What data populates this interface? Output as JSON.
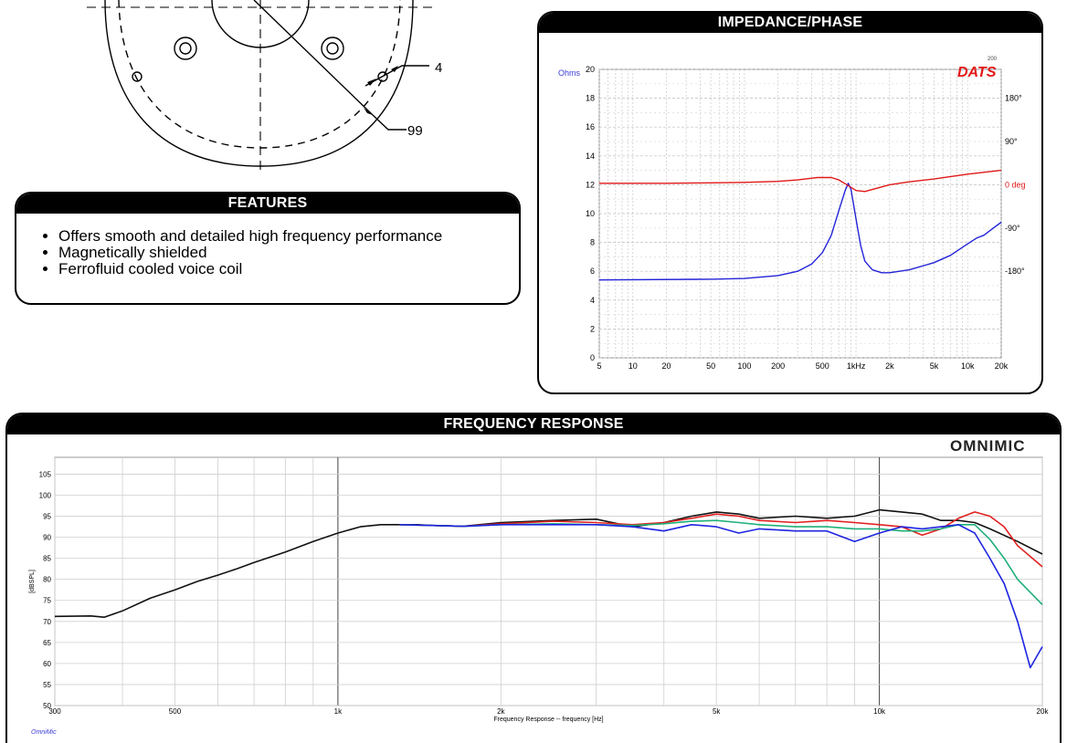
{
  "drawing": {
    "dimension_labels": [
      "4",
      "99"
    ]
  },
  "features": {
    "title": "FEATURES",
    "items": [
      "Offers smooth and detailed high frequency performance",
      "Magnetically shielded",
      "Ferrofluid cooled voice coil"
    ]
  },
  "impedance": {
    "title": "IMPEDANCE/PHASE",
    "brand": "DATS",
    "brand_superscript": "200",
    "y_unit_label": "Ohms",
    "phase_unit_label": "deg"
  },
  "frequency_response": {
    "title": "FREQUENCY RESPONSE",
    "brand": "OMNIMIC",
    "footer_brand": "OmniMic"
  },
  "colors": {
    "impedance": "#2323d8",
    "phase": "#e01818",
    "fr_black": "#111111",
    "fr_red": "#e22020",
    "fr_green": "#1fb07a",
    "fr_blue": "#1d24e0"
  },
  "chart_data": [
    {
      "type": "line",
      "title": "IMPEDANCE/PHASE",
      "xscale": "log",
      "xlim": [
        5,
        20000
      ],
      "x_ticks": [
        5,
        10,
        20,
        50,
        100,
        200,
        500,
        1000,
        2000,
        5000,
        10000,
        20000
      ],
      "x_tick_labels": [
        "5",
        "10",
        "20",
        "50",
        "100",
        "200",
        "500",
        "1kHz",
        "2k",
        "5k",
        "10k",
        "20k"
      ],
      "ylabel": "Ohms",
      "ylim": [
        0,
        20
      ],
      "y_ticks": [
        0,
        2,
        4,
        6,
        8,
        10,
        12,
        14,
        16,
        18,
        20
      ],
      "y2label": "deg",
      "y2lim": [
        -360,
        240
      ],
      "y2_tick_values": [
        180,
        90,
        0,
        -90,
        -180
      ],
      "y2_tick_labels": [
        "180°",
        "90°",
        "0 deg",
        "-90°",
        "-180°"
      ],
      "series": [
        {
          "name": "Impedance",
          "axis": "left",
          "color": "#2323d8",
          "points": [
            [
              5,
              5.4
            ],
            [
              50,
              5.45
            ],
            [
              100,
              5.5
            ],
            [
              200,
              5.7
            ],
            [
              300,
              6.0
            ],
            [
              400,
              6.5
            ],
            [
              500,
              7.3
            ],
            [
              600,
              8.5
            ],
            [
              700,
              10.2
            ],
            [
              800,
              11.6
            ],
            [
              850,
              12.1
            ],
            [
              900,
              11.7
            ],
            [
              1000,
              9.6
            ],
            [
              1100,
              7.8
            ],
            [
              1200,
              6.7
            ],
            [
              1400,
              6.1
            ],
            [
              1700,
              5.9
            ],
            [
              2000,
              5.9
            ],
            [
              3000,
              6.1
            ],
            [
              5000,
              6.6
            ],
            [
              7000,
              7.1
            ],
            [
              10000,
              7.9
            ],
            [
              12000,
              8.3
            ],
            [
              14000,
              8.5
            ],
            [
              17000,
              9.0
            ],
            [
              20000,
              9.4
            ]
          ]
        },
        {
          "name": "Phase",
          "axis": "right",
          "color": "#e01818",
          "points": [
            [
              5,
              3
            ],
            [
              20,
              3
            ],
            [
              50,
              4
            ],
            [
              100,
              5
            ],
            [
              200,
              7
            ],
            [
              300,
              10
            ],
            [
              450,
              15
            ],
            [
              600,
              15
            ],
            [
              700,
              10
            ],
            [
              800,
              2
            ],
            [
              1000,
              -12
            ],
            [
              1200,
              -14
            ],
            [
              1500,
              -8
            ],
            [
              2000,
              0
            ],
            [
              3000,
              6
            ],
            [
              5000,
              12
            ],
            [
              10000,
              22
            ],
            [
              20000,
              30
            ]
          ]
        }
      ]
    },
    {
      "type": "line",
      "title": "FREQUENCY RESPONSE",
      "xlabel": "Frequency Response -- frequency [Hz]",
      "xscale": "log",
      "xlim": [
        300,
        20000
      ],
      "x_tick_values": [
        300,
        500,
        1000,
        2000,
        5000,
        10000,
        20000
      ],
      "x_tick_labels": [
        "300",
        "500",
        "1k",
        "2k",
        "5k",
        "10k",
        "20k"
      ],
      "ylabel": "[dBSPL]",
      "ylim": [
        50,
        109
      ],
      "y_ticks": [
        50,
        55,
        60,
        65,
        70,
        75,
        80,
        85,
        90,
        95,
        100,
        105
      ],
      "series": [
        {
          "name": "trace-black",
          "color": "#111111",
          "points": [
            [
              300,
              71.2
            ],
            [
              350,
              71.3
            ],
            [
              370,
              71.0
            ],
            [
              400,
              72.5
            ],
            [
              450,
              75.5
            ],
            [
              500,
              77.5
            ],
            [
              550,
              79.5
            ],
            [
              600,
              81.0
            ],
            [
              650,
              82.5
            ],
            [
              700,
              84.0
            ],
            [
              800,
              86.5
            ],
            [
              900,
              89.0
            ],
            [
              1000,
              91.0
            ],
            [
              1100,
              92.5
            ],
            [
              1200,
              93.0
            ],
            [
              1300,
              93.0
            ],
            [
              1400,
              93.0
            ],
            [
              1500,
              92.8
            ],
            [
              1700,
              92.6
            ],
            [
              2000,
              93.5
            ],
            [
              2500,
              94.0
            ],
            [
              3000,
              94.3
            ],
            [
              3500,
              92.5
            ],
            [
              4000,
              93.5
            ],
            [
              4500,
              95.0
            ],
            [
              5000,
              96.0
            ],
            [
              5500,
              95.5
            ],
            [
              6000,
              94.5
            ],
            [
              7000,
              95.0
            ],
            [
              8000,
              94.5
            ],
            [
              9000,
              95.0
            ],
            [
              10000,
              96.5
            ],
            [
              11000,
              96.0
            ],
            [
              12000,
              95.5
            ],
            [
              13000,
              94.0
            ],
            [
              14000,
              94.0
            ],
            [
              15000,
              93.5
            ],
            [
              16000,
              92.0
            ],
            [
              18000,
              89.0
            ],
            [
              20000,
              86.0
            ]
          ]
        },
        {
          "name": "trace-red",
          "color": "#e22020",
          "points": [
            [
              1300,
              93.0
            ],
            [
              1500,
              92.8
            ],
            [
              1700,
              92.6
            ],
            [
              2000,
              93.2
            ],
            [
              2500,
              93.8
            ],
            [
              3000,
              93.5
            ],
            [
              3500,
              93.0
            ],
            [
              4000,
              93.5
            ],
            [
              4500,
              94.5
            ],
            [
              5000,
              95.5
            ],
            [
              5500,
              95.0
            ],
            [
              6000,
              94.0
            ],
            [
              7000,
              93.5
            ],
            [
              8000,
              94.0
            ],
            [
              9000,
              93.5
            ],
            [
              10000,
              93.0
            ],
            [
              11000,
              92.5
            ],
            [
              12000,
              90.5
            ],
            [
              13000,
              92.0
            ],
            [
              14000,
              94.5
            ],
            [
              15000,
              96.0
            ],
            [
              16000,
              95.0
            ],
            [
              17000,
              92.5
            ],
            [
              18000,
              88.0
            ],
            [
              20000,
              83.0
            ]
          ]
        },
        {
          "name": "trace-green",
          "color": "#1fb07a",
          "points": [
            [
              1300,
              93.0
            ],
            [
              1500,
              92.8
            ],
            [
              1700,
              92.6
            ],
            [
              2000,
              93.0
            ],
            [
              2500,
              93.2
            ],
            [
              3000,
              93.0
            ],
            [
              3500,
              92.8
            ],
            [
              4000,
              93.2
            ],
            [
              4500,
              93.8
            ],
            [
              5000,
              94.0
            ],
            [
              5500,
              93.5
            ],
            [
              6000,
              93.0
            ],
            [
              7000,
              92.5
            ],
            [
              8000,
              92.5
            ],
            [
              9000,
              92.0
            ],
            [
              10000,
              92.0
            ],
            [
              11000,
              91.5
            ],
            [
              12000,
              91.5
            ],
            [
              13000,
              92.0
            ],
            [
              14000,
              93.0
            ],
            [
              15000,
              93.0
            ],
            [
              16000,
              89.5
            ],
            [
              17000,
              85.0
            ],
            [
              18000,
              80.0
            ],
            [
              20000,
              74.0
            ]
          ]
        },
        {
          "name": "trace-blue",
          "color": "#1d24e0",
          "points": [
            [
              1300,
              93.0
            ],
            [
              1500,
              92.8
            ],
            [
              1700,
              92.6
            ],
            [
              2000,
              93.0
            ],
            [
              2500,
              93.0
            ],
            [
              3000,
              93.0
            ],
            [
              3500,
              92.5
            ],
            [
              4000,
              91.5
            ],
            [
              4500,
              93.0
            ],
            [
              5000,
              92.5
            ],
            [
              5500,
              91.0
            ],
            [
              6000,
              92.0
            ],
            [
              7000,
              91.5
            ],
            [
              8000,
              91.5
            ],
            [
              9000,
              89.0
            ],
            [
              10000,
              91.0
            ],
            [
              11000,
              92.5
            ],
            [
              12000,
              92.0
            ],
            [
              13000,
              92.5
            ],
            [
              14000,
              93.0
            ],
            [
              15000,
              91.0
            ],
            [
              16000,
              85.0
            ],
            [
              17000,
              79.0
            ],
            [
              18000,
              70.0
            ],
            [
              19000,
              59.0
            ],
            [
              20000,
              64.0
            ]
          ]
        }
      ]
    }
  ]
}
